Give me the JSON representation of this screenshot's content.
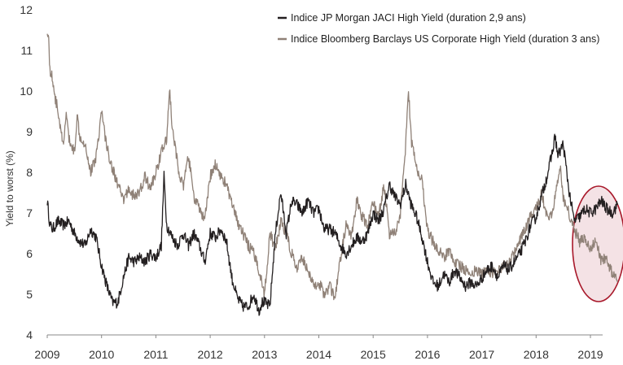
{
  "chart_data": {
    "type": "line",
    "title": "",
    "xlabel": "",
    "ylabel": "Yield to worst (%)",
    "ylim": [
      4,
      12
    ],
    "xlim": [
      2009.0,
      2019.7
    ],
    "x_ticks": [
      "2009",
      "2010",
      "2011",
      "2012",
      "2013",
      "2014",
      "2015",
      "2016",
      "2017",
      "2018",
      "2019"
    ],
    "y_ticks": [
      "4",
      "5",
      "6",
      "7",
      "8",
      "9",
      "10",
      "11",
      "12"
    ],
    "legend_position": "top-right",
    "annotation": "red ellipse highlighting 2019",
    "colors": {
      "jaci": "#231f20",
      "bbg": "#8f8177",
      "annotation": "#a8182a",
      "annotation_fill": "#f2dde0",
      "axis": "#888888"
    },
    "series": [
      {
        "name": "Indice JP Morgan JACI High Yield (duration 2,9 ans)",
        "key": "jaci",
        "x": [
          2009.0,
          2009.05,
          2009.1,
          2009.2,
          2009.3,
          2009.4,
          2009.5,
          2009.6,
          2009.7,
          2009.8,
          2009.9,
          2010.0,
          2010.1,
          2010.2,
          2010.3,
          2010.35,
          2010.4,
          2010.5,
          2010.6,
          2010.7,
          2010.8,
          2010.9,
          2011.0,
          2011.1,
          2011.15,
          2011.2,
          2011.3,
          2011.4,
          2011.5,
          2011.6,
          2011.7,
          2011.8,
          2011.9,
          2012.0,
          2012.1,
          2012.2,
          2012.3,
          2012.4,
          2012.5,
          2012.6,
          2012.7,
          2012.8,
          2012.9,
          2012.95,
          2013.0,
          2013.1,
          2013.2,
          2013.3,
          2013.4,
          2013.5,
          2013.6,
          2013.7,
          2013.8,
          2013.9,
          2014.0,
          2014.1,
          2014.2,
          2014.3,
          2014.4,
          2014.5,
          2014.6,
          2014.7,
          2014.8,
          2014.9,
          2015.0,
          2015.1,
          2015.2,
          2015.3,
          2015.4,
          2015.5,
          2015.6,
          2015.7,
          2015.8,
          2015.9,
          2016.0,
          2016.1,
          2016.2,
          2016.3,
          2016.4,
          2016.5,
          2016.6,
          2016.7,
          2016.8,
          2016.9,
          2017.0,
          2017.1,
          2017.2,
          2017.3,
          2017.4,
          2017.5,
          2017.6,
          2017.7,
          2017.8,
          2017.9,
          2018.0,
          2018.1,
          2018.2,
          2018.3,
          2018.35,
          2018.4,
          2018.5,
          2018.6,
          2018.7,
          2018.8,
          2018.9,
          2019.0,
          2019.1,
          2019.2,
          2019.3,
          2019.4,
          2019.5
        ],
        "values": [
          7.3,
          6.7,
          6.6,
          6.8,
          6.7,
          6.8,
          6.5,
          6.3,
          6.2,
          6.6,
          6.4,
          5.7,
          5.2,
          4.8,
          4.8,
          5.1,
          5.4,
          5.9,
          5.8,
          5.9,
          5.8,
          6.0,
          5.9,
          6.2,
          7.9,
          6.7,
          6.4,
          6.2,
          6.5,
          6.2,
          6.5,
          6.2,
          5.8,
          6.5,
          6.4,
          6.6,
          6.3,
          5.4,
          4.9,
          4.7,
          4.7,
          5.0,
          4.6,
          4.8,
          4.8,
          4.7,
          6.5,
          7.5,
          6.5,
          7.3,
          7.2,
          7.0,
          7.3,
          7.0,
          7.1,
          6.6,
          6.6,
          6.5,
          6.2,
          6.0,
          6.2,
          6.4,
          6.3,
          6.5,
          7.0,
          6.8,
          7.1,
          7.7,
          7.4,
          7.2,
          7.7,
          7.2,
          6.9,
          6.4,
          5.8,
          5.3,
          5.2,
          5.5,
          5.3,
          5.6,
          5.4,
          5.2,
          5.3,
          5.2,
          5.4,
          5.6,
          5.7,
          5.4,
          5.7,
          5.6,
          5.8,
          6.0,
          6.3,
          6.7,
          6.9,
          7.4,
          7.9,
          8.5,
          8.9,
          8.4,
          8.7,
          7.6,
          6.8,
          6.9,
          7.1,
          7.0,
          7.1,
          7.3,
          7.1,
          7.0,
          7.2
        ]
      },
      {
        "name": "Indice Bloomberg Barclays US Corporate High Yield (duration 3 ans)",
        "key": "bbg",
        "x": [
          2009.0,
          2009.02,
          2009.05,
          2009.1,
          2009.15,
          2009.2,
          2009.25,
          2009.3,
          2009.35,
          2009.4,
          2009.5,
          2009.55,
          2009.6,
          2009.7,
          2009.8,
          2009.9,
          2010.0,
          2010.1,
          2010.2,
          2010.3,
          2010.4,
          2010.5,
          2010.6,
          2010.7,
          2010.8,
          2010.9,
          2011.0,
          2011.1,
          2011.2,
          2011.25,
          2011.3,
          2011.4,
          2011.5,
          2011.6,
          2011.7,
          2011.8,
          2011.9,
          2012.0,
          2012.1,
          2012.2,
          2012.3,
          2012.4,
          2012.5,
          2012.6,
          2012.7,
          2012.8,
          2012.9,
          2013.0,
          2013.1,
          2013.2,
          2013.3,
          2013.4,
          2013.5,
          2013.6,
          2013.7,
          2013.8,
          2013.9,
          2014.0,
          2014.1,
          2014.2,
          2014.3,
          2014.4,
          2014.5,
          2014.6,
          2014.7,
          2014.8,
          2014.9,
          2015.0,
          2015.1,
          2015.2,
          2015.3,
          2015.4,
          2015.5,
          2015.6,
          2015.65,
          2015.7,
          2015.8,
          2015.9,
          2016.0,
          2016.1,
          2016.2,
          2016.3,
          2016.4,
          2016.5,
          2016.6,
          2016.7,
          2016.8,
          2016.9,
          2017.0,
          2017.1,
          2017.2,
          2017.3,
          2017.4,
          2017.5,
          2017.6,
          2017.7,
          2017.8,
          2017.9,
          2018.0,
          2018.1,
          2018.2,
          2018.3,
          2018.4,
          2018.45,
          2018.5,
          2018.6,
          2018.7,
          2018.8,
          2018.9,
          2019.0,
          2019.1,
          2019.2,
          2019.3,
          2019.4,
          2019.5
        ],
        "values": [
          11.4,
          11.5,
          10.5,
          10.3,
          9.8,
          9.5,
          9.0,
          8.6,
          9.5,
          8.8,
          8.5,
          9.4,
          8.9,
          8.7,
          8.0,
          8.4,
          9.5,
          8.6,
          8.1,
          7.7,
          7.3,
          7.6,
          7.4,
          7.5,
          7.9,
          7.6,
          8.0,
          8.5,
          8.8,
          10.1,
          9.1,
          8.2,
          7.6,
          8.4,
          7.4,
          7.1,
          6.8,
          7.9,
          8.2,
          7.9,
          7.7,
          7.2,
          6.8,
          6.5,
          6.2,
          6.0,
          5.6,
          5.0,
          6.5,
          6.1,
          6.8,
          6.5,
          6.0,
          5.6,
          5.9,
          5.6,
          5.2,
          5.3,
          5.0,
          5.2,
          4.9,
          5.9,
          6.7,
          6.4,
          7.3,
          6.9,
          6.7,
          7.3,
          6.9,
          7.7,
          6.5,
          6.5,
          7.0,
          8.7,
          10.1,
          8.8,
          8.1,
          7.8,
          6.6,
          6.3,
          6.1,
          5.9,
          6.1,
          5.8,
          5.7,
          5.6,
          5.5,
          5.6,
          5.5,
          5.6,
          5.5,
          5.6,
          5.7,
          5.8,
          6.0,
          6.3,
          6.6,
          6.9,
          7.1,
          7.5,
          6.9,
          7.0,
          7.8,
          8.1,
          7.4,
          7.0,
          6.6,
          6.3,
          6.4,
          6.1,
          6.3,
          5.8,
          5.9,
          5.5,
          5.3
        ]
      }
    ]
  }
}
